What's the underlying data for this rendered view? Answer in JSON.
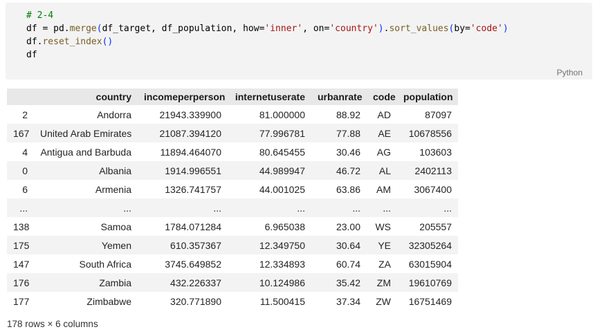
{
  "code_cell": {
    "language_label": "Python",
    "lines": [
      [
        {
          "t": "# 2-4",
          "c": "comment"
        }
      ],
      [
        {
          "t": "df = pd.",
          "c": "plain"
        },
        {
          "t": "merge",
          "c": "func"
        },
        {
          "t": "(",
          "c": "paren"
        },
        {
          "t": "df_target, df_population, how=",
          "c": "plain"
        },
        {
          "t": "'inner'",
          "c": "string"
        },
        {
          "t": ", on=",
          "c": "plain"
        },
        {
          "t": "'country'",
          "c": "string"
        },
        {
          "t": ")",
          "c": "paren"
        },
        {
          "t": ".",
          "c": "plain"
        },
        {
          "t": "sort_values",
          "c": "func"
        },
        {
          "t": "(",
          "c": "paren"
        },
        {
          "t": "by=",
          "c": "plain"
        },
        {
          "t": "'code'",
          "c": "string"
        },
        {
          "t": ")",
          "c": "paren"
        }
      ],
      [
        {
          "t": "df.",
          "c": "plain"
        },
        {
          "t": "reset_index",
          "c": "func"
        },
        {
          "t": "(",
          "c": "paren"
        },
        {
          "t": ")",
          "c": "paren"
        }
      ],
      [
        {
          "t": "df",
          "c": "plain"
        }
      ]
    ]
  },
  "table": {
    "columns": [
      "",
      "country",
      "incomeperperson",
      "internetuserate",
      "urbanrate",
      "code",
      "population"
    ],
    "rows": [
      [
        "2",
        "Andorra",
        "21943.339900",
        "81.000000",
        "88.92",
        "AD",
        "87097"
      ],
      [
        "167",
        "United Arab Emirates",
        "21087.394120",
        "77.996781",
        "77.88",
        "AE",
        "10678556"
      ],
      [
        "4",
        "Antigua and Barbuda",
        "11894.464070",
        "80.645455",
        "30.46",
        "AG",
        "103603"
      ],
      [
        "0",
        "Albania",
        "1914.996551",
        "44.989947",
        "46.72",
        "AL",
        "2402113"
      ],
      [
        "6",
        "Armenia",
        "1326.741757",
        "44.001025",
        "63.86",
        "AM",
        "3067400"
      ],
      [
        "...",
        "...",
        "...",
        "...",
        "...",
        "...",
        "..."
      ],
      [
        "138",
        "Samoa",
        "1784.071284",
        "6.965038",
        "23.00",
        "WS",
        "205557"
      ],
      [
        "175",
        "Yemen",
        "610.357367",
        "12.349750",
        "30.64",
        "YE",
        "32305264"
      ],
      [
        "147",
        "South Africa",
        "3745.649852",
        "12.334893",
        "60.74",
        "ZA",
        "63015904"
      ],
      [
        "176",
        "Zambia",
        "432.226337",
        "10.124986",
        "35.42",
        "ZM",
        "19610769"
      ],
      [
        "177",
        "Zimbabwe",
        "320.771890",
        "11.500415",
        "37.34",
        "ZW",
        "16751469"
      ]
    ],
    "footer": "178 rows × 6 columns"
  },
  "colors": {
    "code_cell_bg": "#f3f3f3",
    "comment": "#008000",
    "string": "#a31515",
    "function": "#795e26",
    "paren": "#0431fa",
    "header_bg": "#e8e8e8",
    "stripe_bg": "#f3f3f3",
    "kernel_label": "#717171"
  }
}
